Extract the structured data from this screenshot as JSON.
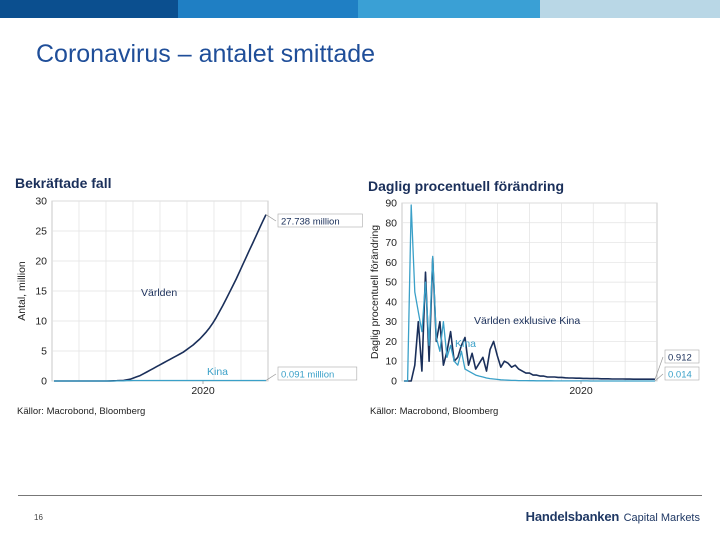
{
  "slide": {
    "title": "Coronavirus – antalet smittade",
    "page_number": "16",
    "brand_name": "Handelsbanken",
    "brand_suffix": "Capital Markets",
    "topbar_colors": [
      "#0b4f8f",
      "#1f7fc4",
      "#3aa0d5",
      "#b9d7e6"
    ]
  },
  "chart_data": [
    {
      "type": "line",
      "title": "Bekräftade fall",
      "ylabel": "Antal, million",
      "xlabel": "",
      "ylim": [
        0,
        30
      ],
      "yticks": [
        0,
        5,
        10,
        15,
        20,
        25,
        30
      ],
      "xticks": [
        "2020"
      ],
      "grid": true,
      "source": "Källor: Macrobond, Bloomberg",
      "series": [
        {
          "name": "Världen",
          "color": "#1a2f5a",
          "end_label": "27.738 million",
          "values": [
            0,
            0,
            0,
            0,
            0,
            0,
            0,
            0,
            0,
            0,
            0,
            0,
            0,
            0,
            0,
            0,
            0,
            0.01,
            0.03,
            0.05,
            0.08,
            0.1,
            0.2,
            0.3,
            0.5,
            0.7,
            0.9,
            1.2,
            1.5,
            1.8,
            2.1,
            2.4,
            2.7,
            3.0,
            3.3,
            3.6,
            3.9,
            4.2,
            4.5,
            4.8,
            5.2,
            5.6,
            6.0,
            6.5,
            7.0,
            7.6,
            8.2,
            8.9,
            9.7,
            10.6,
            11.6,
            12.6,
            13.7,
            14.8,
            15.9,
            17.0,
            18.2,
            19.4,
            20.6,
            21.8,
            23.0,
            24.2,
            25.4,
            26.6,
            27.738
          ]
        },
        {
          "name": "Kina",
          "color": "#3aa0c8",
          "end_label": "0.091 million",
          "values": [
            0,
            0,
            0,
            0,
            0,
            0,
            0,
            0,
            0,
            0,
            0,
            0,
            0,
            0,
            0,
            0,
            0,
            0.001,
            0.005,
            0.01,
            0.02,
            0.04,
            0.06,
            0.07,
            0.078,
            0.08,
            0.081,
            0.081,
            0.082,
            0.082,
            0.082,
            0.083,
            0.083,
            0.083,
            0.083,
            0.083,
            0.083,
            0.084,
            0.084,
            0.084,
            0.084,
            0.084,
            0.085,
            0.085,
            0.085,
            0.085,
            0.085,
            0.086,
            0.086,
            0.086,
            0.086,
            0.086,
            0.087,
            0.087,
            0.087,
            0.087,
            0.088,
            0.088,
            0.088,
            0.089,
            0.089,
            0.089,
            0.09,
            0.09,
            0.091
          ]
        }
      ]
    },
    {
      "type": "line",
      "title": "Daglig procentuell förändring",
      "ylabel": "Daglig procentuell förändring",
      "xlabel": "",
      "ylim": [
        0,
        90
      ],
      "yticks": [
        0,
        10,
        20,
        30,
        40,
        50,
        60,
        70,
        80,
        90
      ],
      "xticks": [
        "2020"
      ],
      "grid": true,
      "source": "Källor: Macrobond, Bloomberg",
      "series": [
        {
          "name": "Världen exklusive Kina",
          "color": "#1a2f5a",
          "end_label": "0.912",
          "values": [
            0,
            0,
            0,
            8,
            30,
            5,
            55,
            10,
            62,
            20,
            30,
            8,
            15,
            25,
            10,
            12,
            18,
            22,
            8,
            14,
            6,
            9,
            12,
            5,
            16,
            20,
            13,
            7,
            10,
            9,
            7,
            8,
            6,
            5,
            4,
            4,
            3,
            3,
            2.5,
            2.5,
            2,
            2,
            2,
            1.8,
            1.8,
            1.6,
            1.5,
            1.5,
            1.4,
            1.4,
            1.3,
            1.3,
            1.2,
            1.2,
            1.2,
            1.1,
            1.1,
            1.1,
            1.0,
            1.0,
            1.0,
            1.0,
            0.95,
            0.95,
            0.93,
            0.93,
            0.92,
            0.92,
            0.92,
            0.91,
            0.912
          ]
        },
        {
          "name": "Kina",
          "color": "#3aa0c8",
          "end_label": "0.014",
          "values": [
            0,
            0,
            89,
            45,
            35,
            25,
            50,
            18,
            63,
            22,
            15,
            30,
            12,
            18,
            10,
            8,
            15,
            6,
            5,
            4,
            3,
            2.5,
            2,
            1.5,
            1.2,
            1,
            0.8,
            0.6,
            0.5,
            0.4,
            0.3,
            0.3,
            0.2,
            0.2,
            0.2,
            0.15,
            0.15,
            0.1,
            0.1,
            0.1,
            0.08,
            0.08,
            0.07,
            0.06,
            0.05,
            0.05,
            0.04,
            0.04,
            0.03,
            0.03,
            0.03,
            0.03,
            0.02,
            0.02,
            0.02,
            0.02,
            0.02,
            0.02,
            0.02,
            0.02,
            0.015,
            0.015,
            0.015,
            0.015,
            0.015,
            0.015,
            0.014,
            0.014,
            0.014,
            0.014,
            0.014
          ]
        }
      ]
    }
  ]
}
